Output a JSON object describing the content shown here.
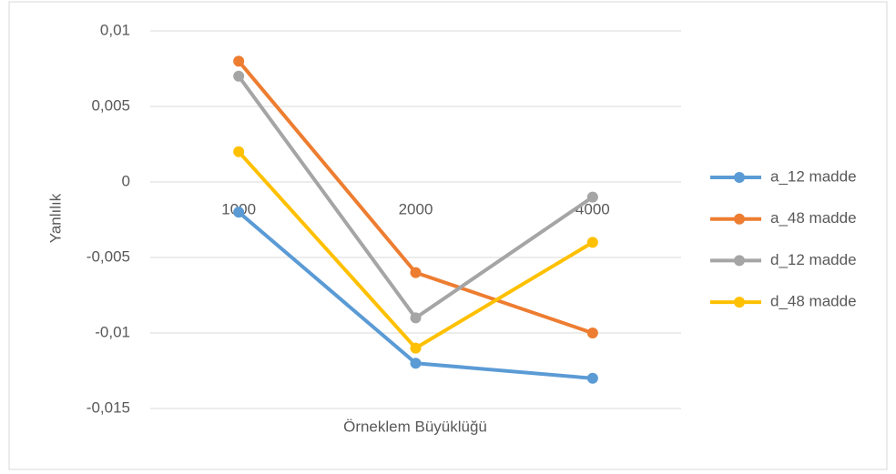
{
  "chart_data": {
    "type": "line",
    "y_label": "Yanlılık",
    "x_label": "Örneklem Büyüklüğü",
    "categories": [
      "1000",
      "2000",
      "4000"
    ],
    "series": [
      {
        "name": "a_12 madde",
        "color": "#5b9bd5",
        "values": [
          -0.002,
          -0.012,
          -0.013
        ]
      },
      {
        "name": "a_48 madde",
        "color": "#ed7d31",
        "values": [
          0.008,
          -0.006,
          -0.01
        ]
      },
      {
        "name": "d_12 madde",
        "color": "#a5a5a5",
        "values": [
          0.007,
          -0.009,
          -0.001
        ]
      },
      {
        "name": "d_48 madde",
        "color": "#ffc000",
        "values": [
          0.002,
          -0.011,
          -0.004
        ]
      }
    ],
    "ylim": [
      -0.015,
      0.01
    ],
    "yticks": [
      {
        "value": -0.015,
        "label": "-0,015"
      },
      {
        "value": -0.01,
        "label": "-0,01"
      },
      {
        "value": -0.005,
        "label": "-0,005"
      },
      0,
      {
        "value": 0.005,
        "label": "0,005"
      },
      {
        "value": 0.01,
        "label": "0,01"
      }
    ],
    "grid": true,
    "legend": "right"
  }
}
